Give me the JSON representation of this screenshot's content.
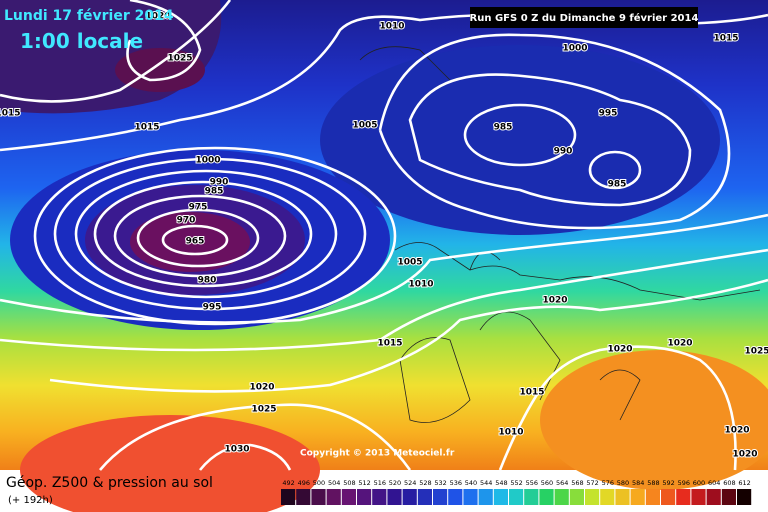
{
  "header": {
    "date": "Lundi 17 février 2014",
    "time": "1:00 locale",
    "run": "Run GFS 0 Z du Dimanche 9 février 2014"
  },
  "map": {
    "isobar_labels": [
      1020,
      1025,
      1015,
      1015,
      1010,
      1005,
      1000,
      1015,
      985,
      995,
      990,
      985,
      1000,
      990,
      985,
      975,
      970,
      965,
      980,
      995,
      1005,
      1010,
      1020,
      1015,
      1020,
      1020,
      1025,
      1020,
      1025,
      1015,
      1010,
      1030,
      1020,
      1020
    ],
    "copyright": "Copyright © 2013 Meteociel.fr"
  },
  "footer": {
    "title": "Géop. Z500 & pression au sol",
    "lead": "(+ 192h)",
    "scale": [
      492,
      496,
      500,
      504,
      508,
      512,
      516,
      520,
      524,
      528,
      532,
      536,
      540,
      544,
      548,
      552,
      556,
      560,
      564,
      568,
      572,
      576,
      580,
      584,
      588,
      592,
      596,
      600,
      604,
      608,
      612
    ]
  }
}
